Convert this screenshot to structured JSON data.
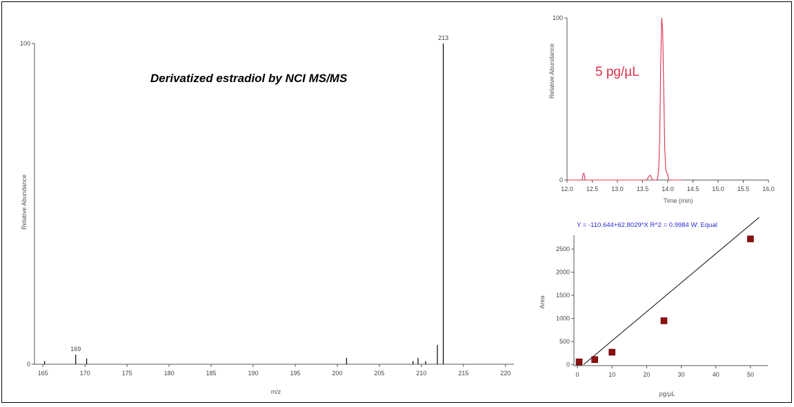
{
  "colors": {
    "spectrum": "#000000",
    "chromatogram": "#d9304a",
    "equation": "#2a2ad4",
    "point": "#8b1010",
    "fit": "#000000"
  },
  "chart_data": [
    {
      "type": "bar",
      "title": "Derivatized estradiol by NCI MS/MS",
      "xlabel": "m/z",
      "ylabel": "Relative Abundance",
      "xlim": [
        164,
        221
      ],
      "ylim": [
        0,
        100
      ],
      "xticks": [
        "165",
        "170",
        "175",
        "180",
        "185",
        "190",
        "195",
        "200",
        "205",
        "210",
        "215",
        "220"
      ],
      "yticks": [
        "0",
        "100"
      ],
      "peaks": [
        {
          "x": 165.2,
          "y": 1.0
        },
        {
          "x": 168.9,
          "y": 3.0,
          "label": "169"
        },
        {
          "x": 170.2,
          "y": 1.8
        },
        {
          "x": 201.1,
          "y": 2.0
        },
        {
          "x": 209.0,
          "y": 1.0
        },
        {
          "x": 209.6,
          "y": 2.0
        },
        {
          "x": 210.5,
          "y": 1.0
        },
        {
          "x": 211.9,
          "y": 6.0
        },
        {
          "x": 212.6,
          "y": 100,
          "label": "213"
        }
      ],
      "grid": false
    },
    {
      "type": "line",
      "title": "",
      "annotation": "5 pg/µL",
      "xlabel": "Time (min)",
      "ylabel": "Relative Abundance",
      "xlim": [
        12.0,
        16.0
      ],
      "ylim": [
        0,
        100
      ],
      "xticks": [
        "12.0",
        "12.5",
        "13.0",
        "13.5",
        "14.0",
        "14.5",
        "15.0",
        "15.5",
        "16.0"
      ],
      "yticks": [
        "0",
        "100"
      ],
      "series": [
        {
          "x": [
            12.0,
            12.3,
            12.32,
            12.34,
            12.36,
            13.58,
            13.62,
            13.65,
            13.7,
            13.74,
            13.78,
            13.8,
            13.82,
            13.84,
            13.86,
            13.88,
            13.9,
            13.92,
            13.94,
            13.96,
            13.98,
            14.0,
            14.02,
            14.05,
            14.1,
            14.3
          ],
          "y": [
            0,
            0,
            4,
            4,
            0,
            0,
            2,
            3,
            0,
            0,
            0,
            1,
            7,
            25,
            72,
            100,
            92,
            55,
            20,
            6,
            5,
            3,
            0,
            0,
            0,
            0
          ]
        }
      ],
      "grid": false
    },
    {
      "type": "scatter",
      "title": "Y = -110.644+62.8029*X   R^2 = 0.9984   W: Equal",
      "xlabel": "pg/µL",
      "ylabel": "Area",
      "xlim": [
        -1,
        55
      ],
      "ylim": [
        -20,
        2800
      ],
      "xticks": [
        "0",
        "10",
        "20",
        "30",
        "40",
        "50"
      ],
      "yticks": [
        "0",
        "500",
        "1000",
        "1500",
        "2000",
        "2500"
      ],
      "points": [
        {
          "x": 0.5,
          "y": 60
        },
        {
          "x": 5,
          "y": 110
        },
        {
          "x": 10,
          "y": 270
        },
        {
          "x": 25,
          "y": 950
        },
        {
          "x": 50,
          "y": 2720
        }
      ],
      "fit": {
        "intercept": -110.644,
        "slope": 62.8029,
        "x_range": [
          1.8,
          52.5
        ]
      },
      "grid": false
    }
  ]
}
